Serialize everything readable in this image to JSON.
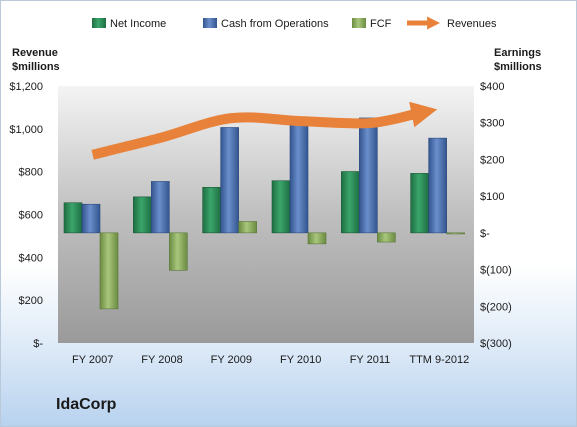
{
  "company": "IdaCorp",
  "colors": {
    "net_income": "#2e8b57",
    "cash_from_operations": "#4a70b0",
    "fcf": "#8db060",
    "revenues": "#e8823a"
  },
  "chart_data": {
    "type": "bar",
    "categories": [
      "FY 2007",
      "FY 2008",
      "FY 2009",
      "FY 2010",
      "FY 2011",
      "TTM 9-2012"
    ],
    "legend_position": "top",
    "grid": false,
    "series": [
      {
        "name": "Net Income",
        "axis": "right",
        "type": "bar",
        "values": [
          82,
          98,
          124,
          142,
          167,
          162
        ]
      },
      {
        "name": "Cash from Operations",
        "axis": "right",
        "type": "bar",
        "values": [
          78,
          140,
          287,
          310,
          313,
          258
        ]
      },
      {
        "name": "FCF",
        "axis": "right",
        "type": "bar",
        "values": [
          -207,
          -102,
          31,
          -30,
          -25,
          -3
        ]
      },
      {
        "name": "Revenues",
        "axis": "left",
        "type": "line",
        "values": [
          879,
          960,
          1050,
          1036,
          1027,
          1074
        ]
      }
    ],
    "left_axis": {
      "title_lines": [
        "Revenue",
        "$millions"
      ],
      "ylim": [
        0,
        1200
      ],
      "ticks": [
        {
          "value": 0,
          "label": "$-"
        },
        {
          "value": 200,
          "label": "$200"
        },
        {
          "value": 400,
          "label": "$400"
        },
        {
          "value": 600,
          "label": "$600"
        },
        {
          "value": 800,
          "label": "$800"
        },
        {
          "value": 1000,
          "label": "$1,000"
        },
        {
          "value": 1200,
          "label": "$1,200"
        }
      ]
    },
    "right_axis": {
      "title_lines": [
        "Earnings",
        "$millions"
      ],
      "ylim": [
        -300,
        400
      ],
      "ticks": [
        {
          "value": -300,
          "label": "$(300)"
        },
        {
          "value": -200,
          "label": "$(200)"
        },
        {
          "value": -100,
          "label": "$(100)"
        },
        {
          "value": 0,
          "label": "$-"
        },
        {
          "value": 100,
          "label": "$100"
        },
        {
          "value": 200,
          "label": "$200"
        },
        {
          "value": 300,
          "label": "$300"
        },
        {
          "value": 400,
          "label": "$400"
        }
      ]
    }
  }
}
